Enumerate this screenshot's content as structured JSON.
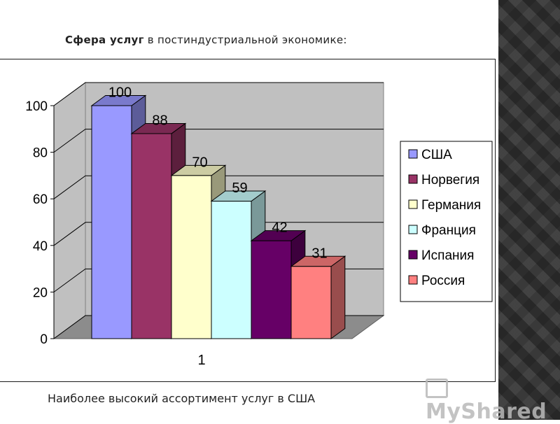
{
  "slide": {
    "heading_bold": "Сфера услуг",
    "heading_rest": " в постиндустриальной экономике:",
    "caption": "Наиболее высокий ассортимент услуг в США",
    "watermark": "MyShared"
  },
  "chart_data": {
    "type": "bar",
    "categories": [
      "1"
    ],
    "ylim": [
      0,
      100
    ],
    "yticks": [
      0,
      20,
      40,
      60,
      80,
      100
    ],
    "grid": true,
    "legend_position": "right",
    "series": [
      {
        "name": "США",
        "values": [
          100
        ],
        "color": "#9999ff"
      },
      {
        "name": "Норвегия",
        "values": [
          88
        ],
        "color": "#993366"
      },
      {
        "name": "Германия",
        "values": [
          70
        ],
        "color": "#ffffcc"
      },
      {
        "name": "Франция",
        "values": [
          59
        ],
        "color": "#ccffff"
      },
      {
        "name": "Испания",
        "values": [
          42
        ],
        "color": "#660066"
      },
      {
        "name": "Россия",
        "values": [
          31
        ],
        "color": "#ff8080"
      }
    ]
  }
}
